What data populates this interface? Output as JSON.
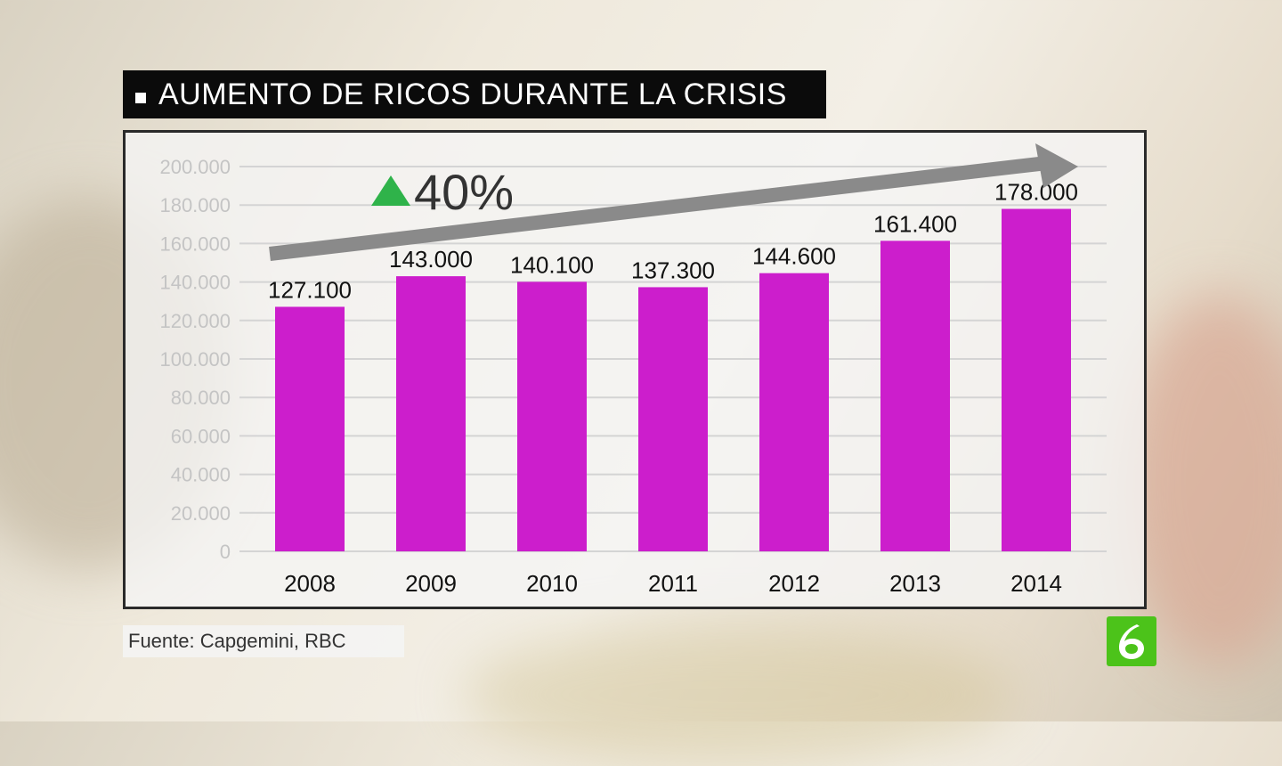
{
  "title": "AUMENTO DE RICOS DURANTE LA CRISIS",
  "source": "Fuente: Capgemini, RBC",
  "growth_label": "40%",
  "colors": {
    "bar": "#cc1ecc",
    "arrow": "#8a8a8a",
    "up_triangle": "#2fb34a",
    "logo": "#4cc31a"
  },
  "chart_data": {
    "type": "bar",
    "title": "AUMENTO DE RICOS DURANTE LA CRISIS",
    "xlabel": "",
    "ylabel": "",
    "categories": [
      "2008",
      "2009",
      "2010",
      "2011",
      "2012",
      "2013",
      "2014"
    ],
    "values": [
      127100,
      143000,
      140100,
      137300,
      144600,
      161400,
      178000
    ],
    "value_labels": [
      "127.100",
      "143.000",
      "140.100",
      "137.300",
      "144.600",
      "161.400",
      "178.000"
    ],
    "yticks": [
      0,
      20000,
      40000,
      60000,
      80000,
      100000,
      120000,
      140000,
      160000,
      180000,
      200000
    ],
    "ytick_labels": [
      "0",
      "20.000",
      "40.000",
      "60.000",
      "80.000",
      "100.000",
      "120.000",
      "140.000",
      "160.000",
      "180.000",
      "200.000"
    ],
    "ylim": [
      0,
      200000
    ],
    "grid": true,
    "annotation": "40%"
  }
}
